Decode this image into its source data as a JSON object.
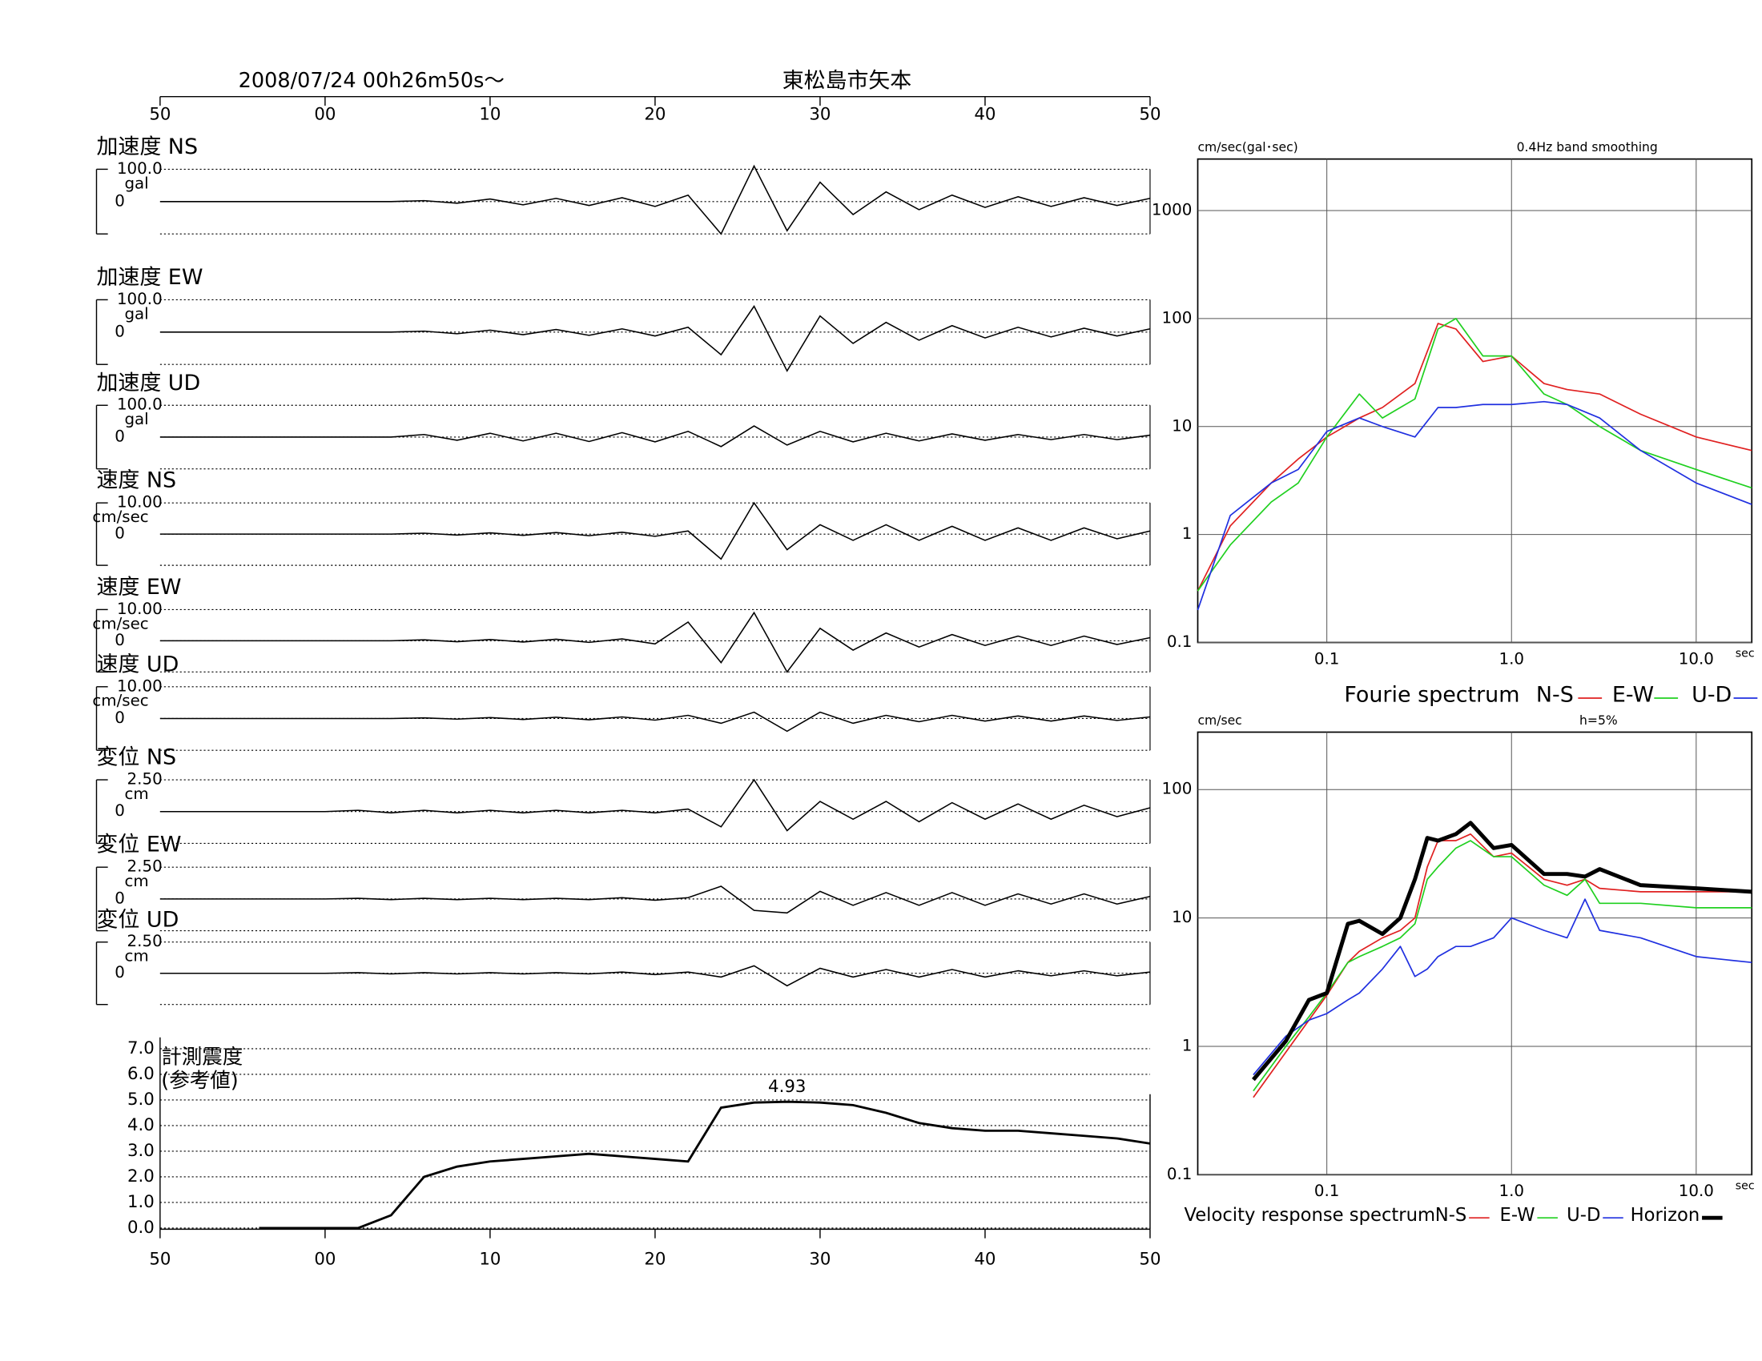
{
  "header": {
    "datetime": "2008/07/24  00h26m50s〜",
    "station": "東松島市矢本"
  },
  "chart_data": [
    {
      "type": "wave",
      "title": "加速度 NS",
      "y_label": "gal",
      "color": "#000000",
      "xlim": [
        0,
        60
      ],
      "xticks": [
        {
          "value": 0,
          "label": "50"
        },
        {
          "value": 10,
          "label": "00"
        },
        {
          "value": 20,
          "label": "10"
        },
        {
          "value": 30,
          "label": "20"
        },
        {
          "value": 40,
          "label": "30"
        },
        {
          "value": 50,
          "label": "40"
        },
        {
          "value": 60,
          "label": "50"
        }
      ],
      "ylim": [
        -100,
        100
      ],
      "yticks": [
        0,
        {
          "value": 100,
          "label": "100.0"
        }
      ],
      "x": [
        0,
        2,
        4,
        6,
        8,
        10,
        12,
        14,
        16,
        18,
        20,
        22,
        24,
        26,
        28,
        30,
        32,
        34,
        36,
        38,
        40,
        42,
        44,
        46,
        48,
        50,
        52,
        54,
        56,
        58,
        60
      ],
      "values": [
        0,
        0,
        0,
        0,
        0,
        0,
        0,
        0,
        3,
        -5,
        8,
        -10,
        10,
        -12,
        12,
        -15,
        20,
        -100,
        110,
        -90,
        60,
        -40,
        30,
        -25,
        20,
        -18,
        15,
        -15,
        12,
        -12,
        10
      ]
    },
    {
      "type": "wave",
      "title": "加速度 EW",
      "y_label": "gal",
      "color": "#000000",
      "xlim": [
        0,
        60
      ],
      "ylim": [
        -100,
        100
      ],
      "yticks": [
        0,
        {
          "value": 100,
          "label": "100.0"
        }
      ],
      "x": [
        0,
        2,
        4,
        6,
        8,
        10,
        12,
        14,
        16,
        18,
        20,
        22,
        24,
        26,
        28,
        30,
        32,
        34,
        36,
        38,
        40,
        42,
        44,
        46,
        48,
        50,
        52,
        54,
        56,
        58,
        60
      ],
      "values": [
        0,
        0,
        0,
        0,
        0,
        0,
        0,
        0,
        3,
        -5,
        6,
        -8,
        8,
        -10,
        10,
        -12,
        15,
        -70,
        80,
        -120,
        50,
        -35,
        30,
        -25,
        20,
        -18,
        15,
        -15,
        12,
        -12,
        10
      ]
    },
    {
      "type": "wave",
      "title": "加速度 UD",
      "y_label": "gal",
      "color": "#000000",
      "xlim": [
        0,
        60
      ],
      "ylim": [
        -100,
        100
      ],
      "yticks": [
        0,
        {
          "value": 100,
          "label": "100.0"
        }
      ],
      "x": [
        0,
        2,
        4,
        6,
        8,
        10,
        12,
        14,
        16,
        18,
        20,
        22,
        24,
        26,
        28,
        30,
        32,
        34,
        36,
        38,
        40,
        42,
        44,
        46,
        48,
        50,
        52,
        54,
        56,
        58,
        60
      ],
      "values": [
        0,
        0,
        0,
        0,
        0,
        0,
        0,
        0,
        8,
        -10,
        12,
        -12,
        12,
        -14,
        14,
        -15,
        18,
        -30,
        35,
        -25,
        18,
        -15,
        12,
        -12,
        10,
        -10,
        8,
        -8,
        8,
        -8,
        6
      ]
    },
    {
      "type": "wave",
      "title": "速度 NS",
      "y_label": "cm/sec",
      "color": "#000000",
      "xlim": [
        0,
        60
      ],
      "ylim": [
        -10,
        10
      ],
      "yticks": [
        0,
        {
          "value": 10,
          "label": "10.00"
        }
      ],
      "x": [
        0,
        2,
        4,
        6,
        8,
        10,
        12,
        14,
        16,
        18,
        20,
        22,
        24,
        26,
        28,
        30,
        32,
        34,
        36,
        38,
        40,
        42,
        44,
        46,
        48,
        50,
        52,
        54,
        56,
        58,
        60
      ],
      "values": [
        0,
        0,
        0,
        0,
        0,
        0,
        0,
        0,
        0.3,
        -0.3,
        0.4,
        -0.4,
        0.5,
        -0.5,
        0.6,
        -0.7,
        1,
        -8,
        10,
        -5,
        3,
        -2,
        3,
        -2,
        2.5,
        -2,
        2,
        -2,
        2,
        -1.5,
        1
      ]
    },
    {
      "type": "wave",
      "title": "速度 EW",
      "y_label": "cm/sec",
      "color": "#000000",
      "xlim": [
        0,
        60
      ],
      "ylim": [
        -10,
        10
      ],
      "yticks": [
        0,
        {
          "value": 10,
          "label": "10.00"
        }
      ],
      "x": [
        0,
        2,
        4,
        6,
        8,
        10,
        12,
        14,
        16,
        18,
        20,
        22,
        24,
        26,
        28,
        30,
        32,
        34,
        36,
        38,
        40,
        42,
        44,
        46,
        48,
        50,
        52,
        54,
        56,
        58,
        60
      ],
      "values": [
        0,
        0,
        0,
        0,
        0,
        0,
        0,
        0,
        0.3,
        -0.3,
        0.4,
        -0.4,
        0.5,
        -0.5,
        0.6,
        -1,
        6,
        -7,
        9,
        -10,
        4,
        -3,
        2.5,
        -2,
        2,
        -1.5,
        1.5,
        -1.5,
        1.5,
        -1.2,
        1
      ]
    },
    {
      "type": "wave",
      "title": "速度 UD",
      "y_label": "cm/sec",
      "color": "#000000",
      "xlim": [
        0,
        60
      ],
      "ylim": [
        -10,
        10
      ],
      "yticks": [
        0,
        {
          "value": 10,
          "label": "10.00"
        }
      ],
      "x": [
        0,
        2,
        4,
        6,
        8,
        10,
        12,
        14,
        16,
        18,
        20,
        22,
        24,
        26,
        28,
        30,
        32,
        34,
        36,
        38,
        40,
        42,
        44,
        46,
        48,
        50,
        52,
        54,
        56,
        58,
        60
      ],
      "values": [
        0,
        0,
        0,
        0,
        0,
        0,
        0,
        0,
        0.2,
        -0.2,
        0.3,
        -0.3,
        0.4,
        -0.4,
        0.5,
        -0.5,
        1,
        -1.5,
        2,
        -4,
        2,
        -1.5,
        1,
        -1,
        1,
        -0.8,
        0.8,
        -0.8,
        0.8,
        -0.6,
        0.5
      ]
    },
    {
      "type": "wave",
      "title": "変位 NS",
      "y_label": "cm",
      "color": "#000000",
      "xlim": [
        0,
        60
      ],
      "ylim": [
        -2.5,
        2.5
      ],
      "yticks": [
        0,
        {
          "value": 2.5,
          "label": "2.50"
        }
      ],
      "x": [
        0,
        2,
        4,
        6,
        8,
        10,
        12,
        14,
        16,
        18,
        20,
        22,
        24,
        26,
        28,
        30,
        32,
        34,
        36,
        38,
        40,
        42,
        44,
        46,
        48,
        50,
        52,
        54,
        56,
        58,
        60
      ],
      "values": [
        0,
        0,
        0,
        0,
        0,
        0,
        0.1,
        -0.1,
        0.1,
        -0.1,
        0.1,
        -0.1,
        0.1,
        -0.1,
        0.1,
        -0.1,
        0.2,
        -1.2,
        2.5,
        -1.5,
        0.8,
        -0.6,
        0.8,
        -0.8,
        0.7,
        -0.6,
        0.6,
        -0.6,
        0.5,
        -0.4,
        0.3
      ]
    },
    {
      "type": "wave",
      "title": "変位 EW",
      "y_label": "cm",
      "color": "#000000",
      "xlim": [
        0,
        60
      ],
      "ylim": [
        -2.5,
        2.5
      ],
      "yticks": [
        0,
        {
          "value": 2.5,
          "label": "2.50"
        }
      ],
      "x": [
        0,
        2,
        4,
        6,
        8,
        10,
        12,
        14,
        16,
        18,
        20,
        22,
        24,
        26,
        28,
        30,
        32,
        34,
        36,
        38,
        40,
        42,
        44,
        46,
        48,
        50,
        52,
        54,
        56,
        58,
        60
      ],
      "values": [
        0,
        0,
        0,
        0,
        0,
        0,
        0.05,
        -0.05,
        0.05,
        -0.05,
        0.05,
        -0.05,
        0.05,
        -0.05,
        0.1,
        -0.1,
        0.1,
        1,
        -0.9,
        -1.1,
        0.6,
        -0.5,
        0.5,
        -0.5,
        0.5,
        -0.5,
        0.4,
        -0.4,
        0.4,
        -0.4,
        0.2
      ]
    },
    {
      "type": "wave",
      "title": "変位 UD",
      "y_label": "cm",
      "color": "#000000",
      "xlim": [
        0,
        60
      ],
      "ylim": [
        -2.5,
        2.5
      ],
      "yticks": [
        0,
        {
          "value": 2.5,
          "label": "2.50"
        }
      ],
      "x": [
        0,
        2,
        4,
        6,
        8,
        10,
        12,
        14,
        16,
        18,
        20,
        22,
        24,
        26,
        28,
        30,
        32,
        34,
        36,
        38,
        40,
        42,
        44,
        46,
        48,
        50,
        52,
        54,
        56,
        58,
        60
      ],
      "values": [
        0,
        0,
        0,
        0,
        0,
        0,
        0.05,
        -0.05,
        0.05,
        -0.05,
        0.05,
        -0.05,
        0.05,
        -0.05,
        0.1,
        -0.1,
        0.1,
        -0.3,
        0.6,
        -1,
        0.4,
        -0.3,
        0.3,
        -0.3,
        0.3,
        -0.3,
        0.2,
        -0.2,
        0.2,
        -0.2,
        0.1
      ]
    },
    {
      "type": "intensity",
      "title": "計測震度",
      "subtitle": "(参考値)",
      "color": "#000000",
      "grid": true,
      "xlim": [
        0,
        60
      ],
      "xticks": [
        {
          "value": 0,
          "label": "50"
        },
        {
          "value": 10,
          "label": "00"
        },
        {
          "value": 20,
          "label": "10"
        },
        {
          "value": 30,
          "label": "20"
        },
        {
          "value": 40,
          "label": "30"
        },
        {
          "value": 50,
          "label": "40"
        },
        {
          "value": 60,
          "label": "50"
        }
      ],
      "ylim": [
        0,
        7
      ],
      "yticks": [
        {
          "value": 0,
          "label": "0.0"
        },
        {
          "value": 1,
          "label": "1.0"
        },
        {
          "value": 2,
          "label": "2.0"
        },
        {
          "value": 3,
          "label": "3.0"
        },
        {
          "value": 4,
          "label": "4.0"
        },
        {
          "value": 5,
          "label": "5.0"
        },
        {
          "value": 6,
          "label": "6.0"
        },
        {
          "value": 7,
          "label": "7.0"
        }
      ],
      "x": [
        6,
        8,
        10,
        12,
        14,
        16,
        18,
        20,
        22,
        24,
        26,
        28,
        30,
        32,
        34,
        36,
        38,
        40,
        42,
        44,
        46,
        48,
        50,
        52,
        54,
        56,
        58,
        60
      ],
      "values": [
        0,
        0,
        0,
        0,
        0.5,
        2.0,
        2.4,
        2.6,
        2.7,
        2.8,
        2.9,
        2.8,
        2.7,
        2.6,
        4.7,
        4.9,
        4.93,
        4.9,
        4.8,
        4.5,
        4.1,
        3.9,
        3.8,
        3.8,
        3.7,
        3.6,
        3.5,
        3.3
      ],
      "peak_index": 16
    },
    {
      "type": "spectrum",
      "title": "Fourie spectrum",
      "subtitle": "0.4Hz band smoothing",
      "x_label": "sec",
      "y_label": "cm/sec(gal･sec)",
      "log_x": true,
      "log_y": true,
      "grid": true,
      "xlim": [
        0.02,
        20
      ],
      "ylim": [
        0.1,
        3000
      ],
      "xticks": [
        0.1,
        {
          "value": 1,
          "label": "1.0"
        },
        {
          "value": 10,
          "label": "10.0"
        }
      ],
      "yticks": [
        0.1,
        1,
        10,
        100,
        1000
      ],
      "x": [
        0.02,
        0.03,
        0.05,
        0.07,
        0.1,
        0.15,
        0.2,
        0.3,
        0.4,
        0.5,
        0.7,
        1,
        1.5,
        2,
        3,
        5,
        10,
        20
      ],
      "series": [
        {
          "name": "N-S",
          "color": "#e02020",
          "linewidth": 1.2,
          "values": [
            0.3,
            1.2,
            3,
            5,
            8,
            12,
            15,
            25,
            90,
            80,
            40,
            45,
            25,
            22,
            20,
            13,
            8,
            6
          ]
        },
        {
          "name": "E-W",
          "color": "#20d020",
          "linewidth": 1.2,
          "values": [
            0.3,
            0.8,
            2,
            3,
            8,
            20,
            12,
            18,
            80,
            100,
            45,
            45,
            20,
            16,
            10,
            6,
            4,
            2.7
          ]
        },
        {
          "name": "U-D",
          "color": "#2030e0",
          "linewidth": 1.2,
          "values": [
            0.2,
            1.5,
            3,
            4,
            9,
            12,
            10,
            8,
            15,
            15,
            16,
            16,
            17,
            16,
            12,
            6,
            3,
            1.9
          ]
        }
      ]
    },
    {
      "type": "spectrum",
      "title": "Velocity response spectrum",
      "subtitle": "h=5%",
      "x_label": "sec",
      "y_label": "cm/sec",
      "log_x": true,
      "log_y": true,
      "grid": true,
      "xlim": [
        0.02,
        20
      ],
      "ylim": [
        0.1,
        280
      ],
      "xticks": [
        0.1,
        {
          "value": 1,
          "label": "1.0"
        },
        {
          "value": 10,
          "label": "10.0"
        }
      ],
      "yticks": [
        0.1,
        1,
        10,
        100
      ],
      "x": [
        0.04,
        0.06,
        0.08,
        0.1,
        0.13,
        0.15,
        0.2,
        0.25,
        0.3,
        0.35,
        0.4,
        0.5,
        0.6,
        0.8,
        1,
        1.5,
        2,
        2.5,
        3,
        5,
        10,
        20
      ],
      "series": [
        {
          "name": "N-S",
          "color": "#e02020",
          "linewidth": 1.2,
          "values": [
            0.4,
            0.9,
            1.6,
            2.5,
            4.5,
            5.5,
            7,
            8,
            10,
            25,
            40,
            40,
            45,
            30,
            32,
            20,
            18,
            20,
            17,
            16,
            16,
            16
          ]
        },
        {
          "name": "E-W",
          "color": "#20d020",
          "linewidth": 1.2,
          "values": [
            0.45,
            1,
            1.7,
            2.6,
            4.5,
            5,
            6,
            7,
            9,
            20,
            25,
            35,
            40,
            30,
            30,
            18,
            15,
            20,
            13,
            13,
            12,
            12
          ]
        },
        {
          "name": "U-D",
          "color": "#2030e0",
          "linewidth": 1.2,
          "values": [
            0.6,
            1.2,
            1.6,
            1.8,
            2.3,
            2.6,
            4,
            6,
            3.5,
            4,
            5,
            6,
            6,
            7,
            10,
            8,
            7,
            14,
            8,
            7,
            5,
            4.5
          ]
        },
        {
          "name": "Horizon",
          "color": "#000000",
          "linewidth": 3.5,
          "values": [
            0.55,
            1.1,
            2.3,
            2.6,
            9,
            9.5,
            7.5,
            10,
            20,
            42,
            40,
            45,
            55,
            35,
            37,
            22,
            22,
            21,
            24,
            18,
            17,
            16
          ]
        }
      ]
    }
  ]
}
